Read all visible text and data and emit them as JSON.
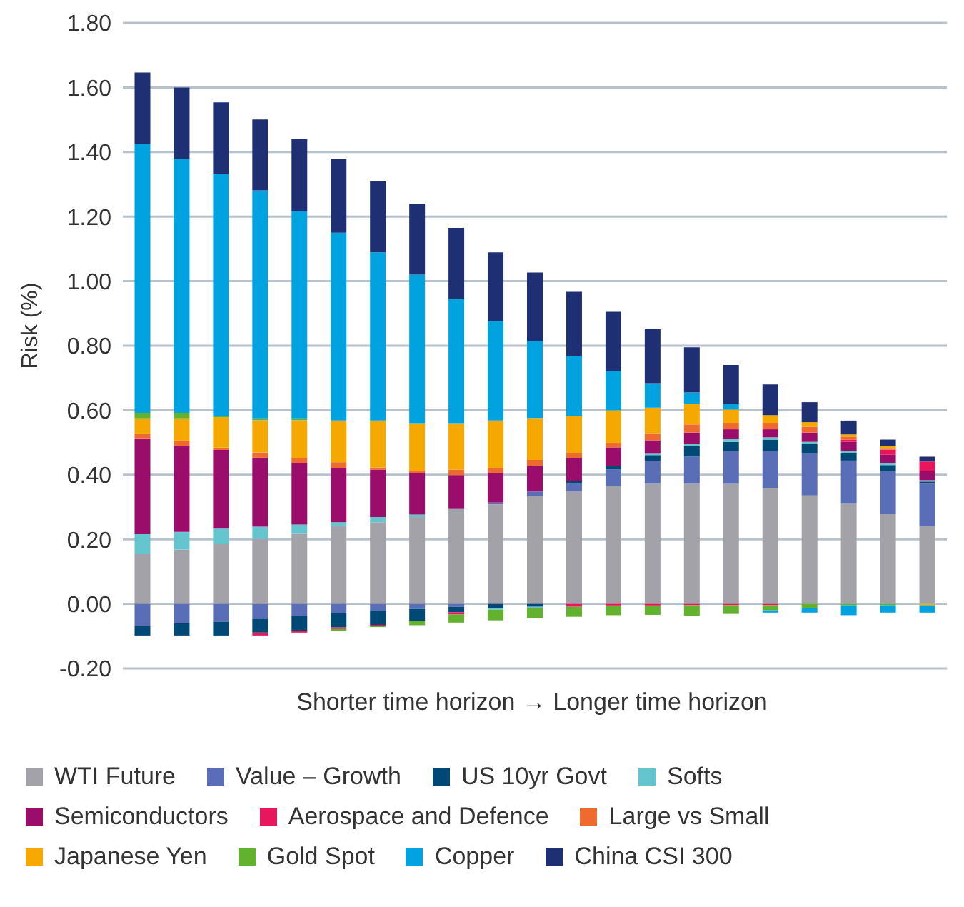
{
  "chart_data": {
    "type": "bar",
    "stacked": true,
    "ylabel": "Risk (%)",
    "xlabel": "Shorter time horizon → Longer time horizon",
    "categories": [
      null,
      null,
      null,
      null,
      null,
      null,
      null,
      null,
      null,
      null,
      null,
      null,
      null,
      null,
      null,
      null,
      null,
      null,
      null,
      null,
      null
    ],
    "ylim": [
      -0.2,
      1.8
    ],
    "yticks": [
      {
        "value": -0.2,
        "label": "-0.20"
      },
      {
        "value": 0,
        "label": "0.00"
      },
      {
        "value": 0.2,
        "label": "0.20"
      },
      {
        "value": 0.4,
        "label": "0.40"
      },
      {
        "value": 0.6,
        "label": "0.60"
      },
      {
        "value": 0.8,
        "label": "0.80"
      },
      {
        "value": 1.0,
        "label": "1.00"
      },
      {
        "value": 1.2,
        "label": "1.20"
      },
      {
        "value": 1.4,
        "label": "1.40"
      },
      {
        "value": 1.6,
        "label": "1.60"
      },
      {
        "value": 1.8,
        "label": "1.80"
      }
    ],
    "grid": "y",
    "legend": "bottom",
    "series": [
      {
        "name": "WTI Future",
        "color": "#a2a2a8",
        "values": [
          0.154,
          0.168,
          0.185,
          0.201,
          0.217,
          0.24,
          0.253,
          0.269,
          0.294,
          0.308,
          0.334,
          0.348,
          0.365,
          0.372,
          0.372,
          0.372,
          0.358,
          0.336,
          0.31,
          0.278,
          0.242
        ]
      },
      {
        "name": "Value – Growth",
        "color": "#5a6eb8",
        "values": [
          -0.069,
          -0.06,
          -0.055,
          -0.046,
          -0.037,
          -0.029,
          -0.022,
          -0.016,
          -0.009,
          0.006,
          0.014,
          0.026,
          0.052,
          0.071,
          0.084,
          0.101,
          0.115,
          0.13,
          0.134,
          0.133,
          0.13
        ]
      },
      {
        "name": "US 10yr Govt",
        "color": "#004876",
        "values": [
          -0.029,
          -0.038,
          -0.043,
          -0.043,
          -0.046,
          -0.044,
          -0.043,
          -0.036,
          -0.017,
          -0.012,
          -0.009,
          0.007,
          0.01,
          0.018,
          0.033,
          0.029,
          0.036,
          0.029,
          0.022,
          0.019,
          0.007
        ]
      },
      {
        "name": "Softs",
        "color": "#64c5cf",
        "values": [
          0.062,
          0.055,
          0.048,
          0.038,
          0.029,
          0.013,
          0.016,
          0.008,
          null,
          -0.006,
          -0.005,
          null,
          null,
          0.004,
          0.006,
          0.01,
          0.007,
          0.007,
          0.007,
          0.007,
          0.004
        ]
      },
      {
        "name": "Semiconductors",
        "color": "#9b0d6b",
        "values": [
          0.297,
          0.266,
          0.244,
          0.214,
          0.191,
          0.167,
          0.147,
          0.129,
          0.105,
          0.092,
          0.079,
          0.071,
          0.058,
          0.042,
          0.036,
          0.029,
          0.025,
          0.029,
          0.029,
          0.025,
          0.028
        ]
      },
      {
        "name": "Aerospace and Defence",
        "color": "#e8175d",
        "values": [
          null,
          null,
          null,
          -0.009,
          -0.006,
          -0.005,
          -0.003,
          null,
          -0.007,
          null,
          null,
          -0.009,
          -0.005,
          -0.005,
          -0.004,
          -0.004,
          -0.004,
          null,
          0.007,
          0.016,
          0.03
        ]
      },
      {
        "name": "Large vs Small",
        "color": "#ef6a2e",
        "values": [
          0.015,
          0.017,
          0.007,
          0.016,
          0.014,
          0.019,
          0.006,
          0.007,
          0.017,
          0.014,
          0.019,
          0.016,
          0.014,
          0.022,
          0.025,
          0.02,
          0.02,
          0.018,
          0.008,
          0.005,
          null
        ]
      },
      {
        "name": "Japanese Yen",
        "color": "#f5a800",
        "values": [
          0.047,
          0.069,
          0.094,
          0.1,
          0.118,
          0.129,
          0.146,
          0.147,
          0.144,
          0.148,
          0.13,
          0.115,
          0.101,
          0.079,
          0.064,
          0.041,
          0.024,
          0.014,
          0.008,
          0.005,
          -0.004
        ]
      },
      {
        "name": "Gold Spot",
        "color": "#62b22f",
        "values": [
          0.017,
          0.017,
          0.004,
          0.006,
          0.006,
          -0.005,
          -0.004,
          -0.014,
          -0.025,
          -0.033,
          -0.029,
          -0.031,
          -0.03,
          -0.029,
          -0.033,
          -0.027,
          -0.016,
          -0.013,
          -0.004,
          -0.004,
          null
        ]
      },
      {
        "name": "Copper",
        "color": "#00a3e0",
        "values": [
          0.833,
          0.787,
          0.751,
          0.706,
          0.643,
          0.582,
          0.521,
          0.46,
          0.384,
          0.307,
          0.238,
          0.185,
          0.122,
          0.076,
          0.035,
          0.018,
          -0.007,
          -0.014,
          -0.031,
          -0.023,
          -0.023
        ]
      },
      {
        "name": "China CSI 300",
        "color": "#1f2f73",
        "values": [
          0.221,
          0.221,
          0.221,
          0.22,
          0.222,
          0.228,
          0.22,
          0.22,
          0.221,
          0.214,
          0.213,
          0.199,
          0.183,
          0.169,
          0.14,
          0.12,
          0.095,
          0.062,
          0.043,
          0.021,
          0.015
        ]
      }
    ]
  }
}
